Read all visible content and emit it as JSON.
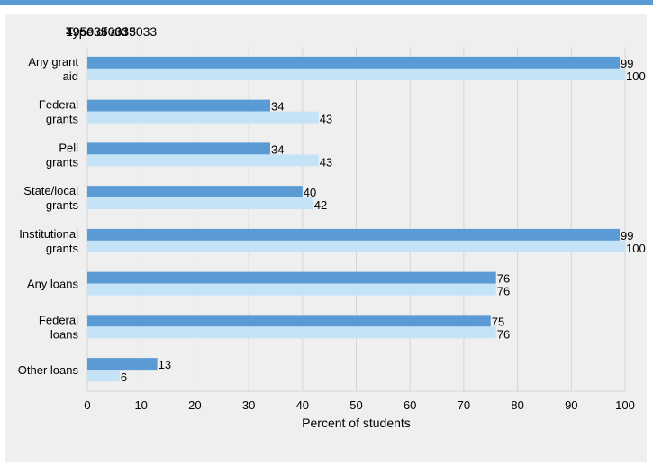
{
  "overlapping_labels": [
    "Type of aid",
    "4950350033",
    "1950350335033"
  ],
  "chart_data": {
    "type": "bar",
    "orientation": "horizontal",
    "categories": [
      [
        "Any grant",
        "aid"
      ],
      [
        "Federal",
        "grants"
      ],
      [
        "Pell",
        "grants"
      ],
      [
        "State/local",
        "grants"
      ],
      [
        "Institutional",
        "grants"
      ],
      [
        "Any loans"
      ],
      [
        "Federal",
        "loans"
      ],
      [
        "Other loans"
      ]
    ],
    "series": [
      {
        "values": [
          99,
          34,
          34,
          40,
          99,
          76,
          75,
          13
        ],
        "color": "#5b9bd5"
      },
      {
        "values": [
          100,
          43,
          43,
          42,
          100,
          76,
          76,
          6
        ],
        "color": "#c5e3f7"
      }
    ],
    "xlabel": "Percent of students",
    "xlim": [
      0,
      100
    ],
    "xticks": [
      0,
      10,
      20,
      30,
      40,
      50,
      60,
      70,
      80,
      90,
      100
    ],
    "grid": "vertical",
    "legend": "none"
  }
}
